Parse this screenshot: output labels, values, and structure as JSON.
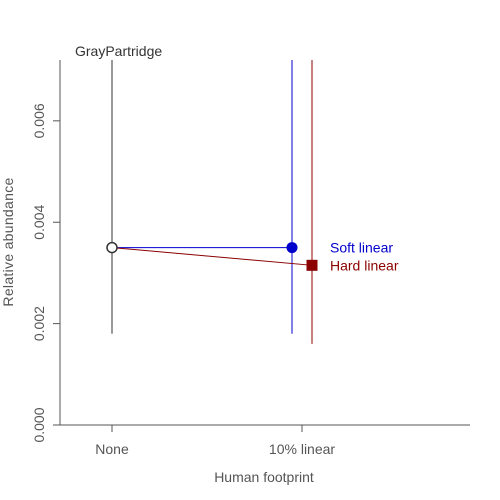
{
  "chart_data": {
    "type": "scatter",
    "title": "GrayPartridge",
    "xlabel": "Human footprint",
    "ylabel": "Relative abundance",
    "categories": [
      "None",
      "10% linear"
    ],
    "ylim": [
      0,
      0.0072
    ],
    "yticks": [
      "0.000",
      "0.002",
      "0.004",
      "0.006"
    ],
    "ytick_values": [
      0,
      0.002,
      0.004,
      0.006
    ],
    "grid": false,
    "baseline": {
      "category": "None",
      "value": 0.0035,
      "lower": 0.0018,
      "upper": 0.0072,
      "color": "#333333"
    },
    "series": [
      {
        "name": "Soft linear",
        "color": "#0000cc",
        "marker": "circle",
        "value": 0.0035,
        "lower": 0.0018,
        "upper": 0.0072
      },
      {
        "name": "Hard linear",
        "color": "#8b0000",
        "marker": "square",
        "value": 0.00315,
        "lower": 0.0016,
        "upper": 0.0072
      }
    ]
  }
}
